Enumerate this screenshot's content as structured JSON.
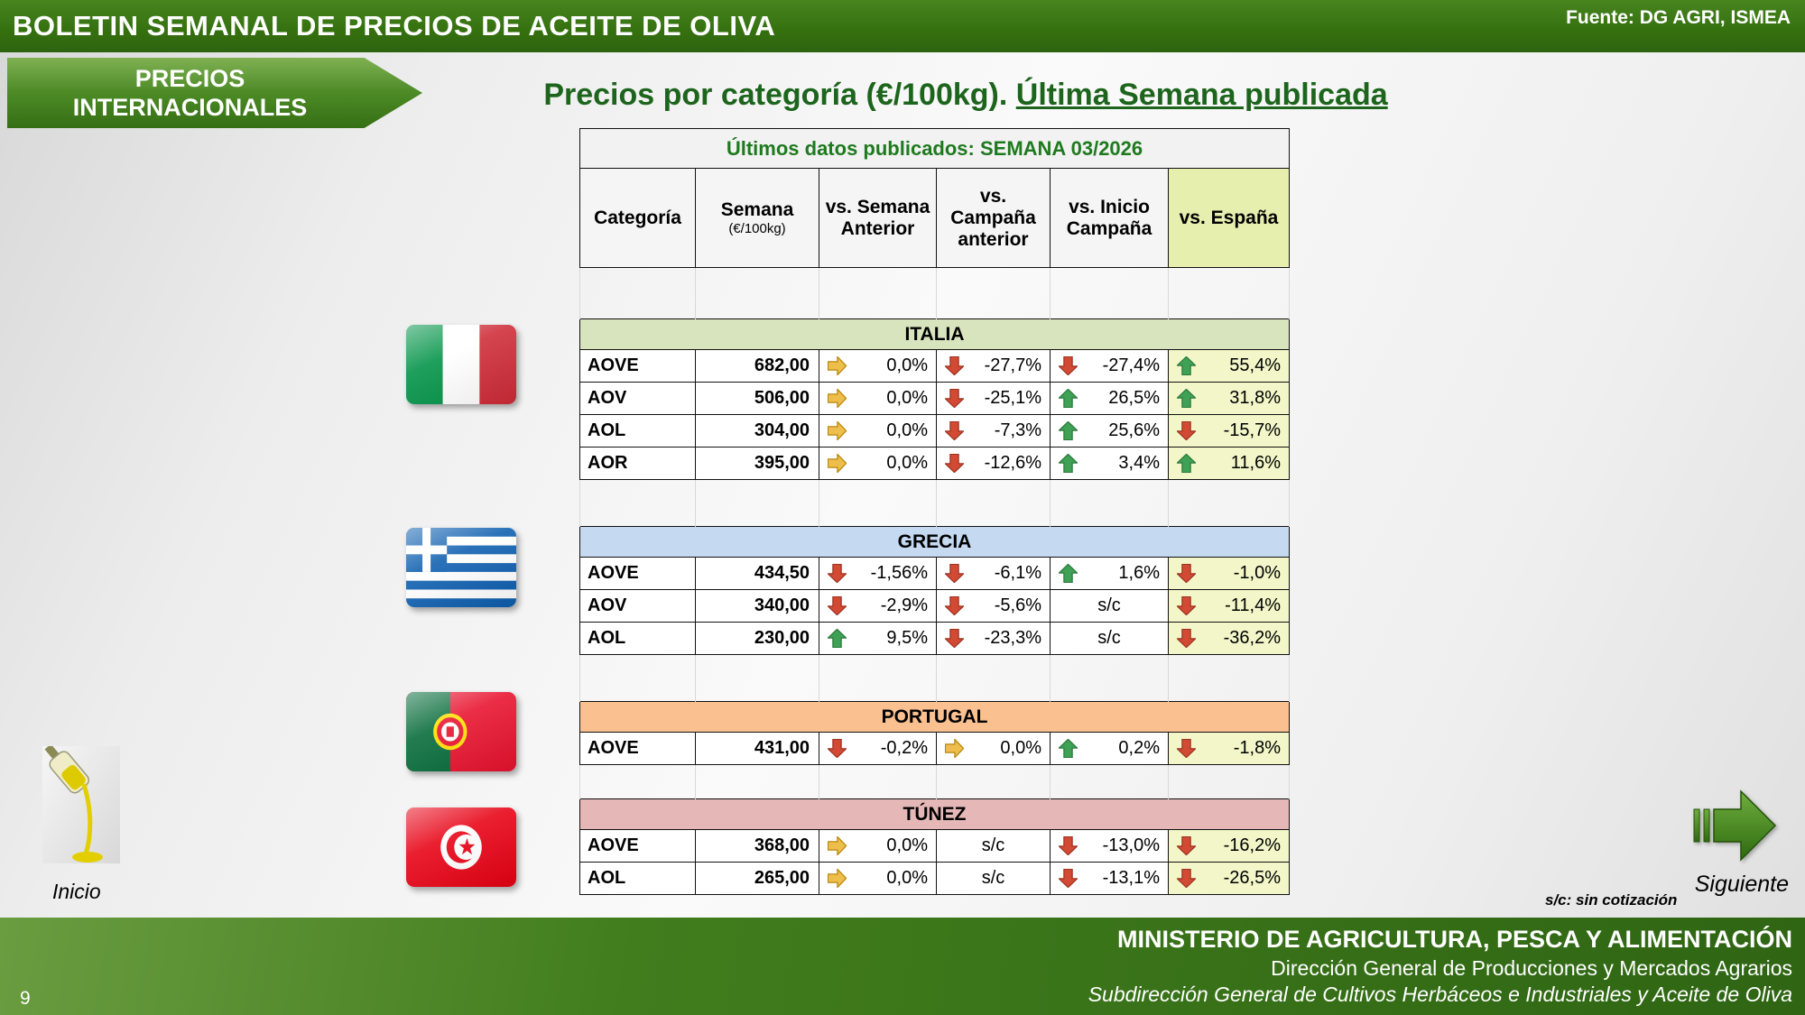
{
  "header": {
    "title": "BOLETIN SEMANAL DE PRECIOS DE ACEITE DE OLIVA",
    "source": "Fuente: DG AGRI, ISMEA"
  },
  "banner": {
    "line1": "PRECIOS",
    "line2": "INTERNACIONALES"
  },
  "page_title": {
    "prefix": "Precios por categoría (€/100kg). ",
    "underlined": "Última Semana publicada"
  },
  "table": {
    "published_header": "Últimos datos publicados: SEMANA 03/2026",
    "columns": [
      {
        "label": "Categoría"
      },
      {
        "label": "Semana",
        "sub": "(€/100kg)"
      },
      {
        "label": "vs. Semana Anterior"
      },
      {
        "label": "vs. Campaña anterior"
      },
      {
        "label": "vs. Inicio Campaña"
      },
      {
        "label": "vs. España",
        "highlight": true
      }
    ],
    "sections": [
      {
        "country": "ITALIA",
        "band_color": "#D7E4BD",
        "flag": "italy-flag-icon",
        "rows": [
          {
            "category": "AOVE",
            "price": "682,00",
            "cells": [
              {
                "dir": "flat",
                "value": "0,0%"
              },
              {
                "dir": "down",
                "value": "-27,7%"
              },
              {
                "dir": "down",
                "value": "-27,4%"
              },
              {
                "dir": "up",
                "value": "55,4%"
              }
            ]
          },
          {
            "category": "AOV",
            "price": "506,00",
            "cells": [
              {
                "dir": "flat",
                "value": "0,0%"
              },
              {
                "dir": "down",
                "value": "-25,1%"
              },
              {
                "dir": "up",
                "value": "26,5%"
              },
              {
                "dir": "up",
                "value": "31,8%"
              }
            ]
          },
          {
            "category": "AOL",
            "price": "304,00",
            "cells": [
              {
                "dir": "flat",
                "value": "0,0%"
              },
              {
                "dir": "down",
                "value": "-7,3%"
              },
              {
                "dir": "up",
                "value": "25,6%"
              },
              {
                "dir": "down",
                "value": "-15,7%"
              }
            ]
          },
          {
            "category": "AOR",
            "price": "395,00",
            "cells": [
              {
                "dir": "flat",
                "value": "0,0%"
              },
              {
                "dir": "down",
                "value": "-12,6%"
              },
              {
                "dir": "up",
                "value": "3,4%"
              },
              {
                "dir": "up",
                "value": "11,6%"
              }
            ]
          }
        ]
      },
      {
        "country": "GRECIA",
        "band_color": "#C5D9F1",
        "flag": "greece-flag-icon",
        "rows": [
          {
            "category": "AOVE",
            "price": "434,50",
            "cells": [
              {
                "dir": "down",
                "value": "-1,56%"
              },
              {
                "dir": "down",
                "value": "-6,1%"
              },
              {
                "dir": "up",
                "value": "1,6%"
              },
              {
                "dir": "down",
                "value": "-1,0%"
              }
            ]
          },
          {
            "category": "AOV",
            "price": "340,00",
            "cells": [
              {
                "dir": "down",
                "value": "-2,9%"
              },
              {
                "dir": "down",
                "value": "-5,6%"
              },
              {
                "dir": "none",
                "value": "s/c"
              },
              {
                "dir": "down",
                "value": "-11,4%"
              }
            ]
          },
          {
            "category": "AOL",
            "price": "230,00",
            "cells": [
              {
                "dir": "up",
                "value": "9,5%"
              },
              {
                "dir": "down",
                "value": "-23,3%"
              },
              {
                "dir": "none",
                "value": "s/c"
              },
              {
                "dir": "down",
                "value": "-36,2%"
              }
            ]
          }
        ]
      },
      {
        "country": "PORTUGAL",
        "band_color": "#FAC090",
        "flag": "portugal-flag-icon",
        "rows": [
          {
            "category": "AOVE",
            "price": "431,00",
            "cells": [
              {
                "dir": "down",
                "value": "-0,2%"
              },
              {
                "dir": "flat",
                "value": "0,0%"
              },
              {
                "dir": "up",
                "value": "0,2%"
              },
              {
                "dir": "down",
                "value": "-1,8%"
              }
            ]
          }
        ]
      },
      {
        "country": "TÚNEZ",
        "band_color": "#E5B8B7",
        "flag": "tunisia-flag-icon",
        "rows": [
          {
            "category": "AOVE",
            "price": "368,00",
            "cells": [
              {
                "dir": "flat",
                "value": "0,0%"
              },
              {
                "dir": "none",
                "value": "s/c"
              },
              {
                "dir": "down",
                "value": "-13,0%"
              },
              {
                "dir": "down",
                "value": "-16,2%"
              }
            ]
          },
          {
            "category": "AOL",
            "price": "265,00",
            "cells": [
              {
                "dir": "flat",
                "value": "0,0%"
              },
              {
                "dir": "none",
                "value": "s/c"
              },
              {
                "dir": "down",
                "value": "-13,1%"
              },
              {
                "dir": "down",
                "value": "-26,5%"
              }
            ]
          }
        ]
      }
    ]
  },
  "legend": {
    "sc_note": "s/c: sin cotización"
  },
  "nav": {
    "inicio": "Inicio",
    "siguiente": "Siguiente",
    "page_number": "9"
  },
  "footer": {
    "line1": "MINISTERIO DE AGRICULTURA, PESCA Y ALIMENTACIÓN",
    "line2": "Dirección General de Producciones y Mercados Agrarios",
    "line3": "Subdirección General de Cultivos Herbáceos e Industriales y Aceite de Oliva"
  },
  "icons": {
    "trend_up": "up-arrow",
    "trend_down": "down-arrow",
    "trend_flat": "right-arrow",
    "next": "striped-right-arrow",
    "home": "olive-oil-photo"
  },
  "colors": {
    "trend_up": "#3FA155",
    "trend_up_stroke": "#2B7A3D",
    "trend_down": "#D24A33",
    "trend_down_stroke": "#9E3322",
    "trend_flat": "#EDBE4B",
    "trend_flat_stroke": "#B8860B",
    "header_green": "#35700F",
    "title_green": "#1D651D",
    "band_italia": "#D7E4BD",
    "band_grecia": "#C5D9F1",
    "band_portugal": "#FAC090",
    "band_tunez": "#E5B8B7",
    "espana_column": "#F2F6C8"
  }
}
